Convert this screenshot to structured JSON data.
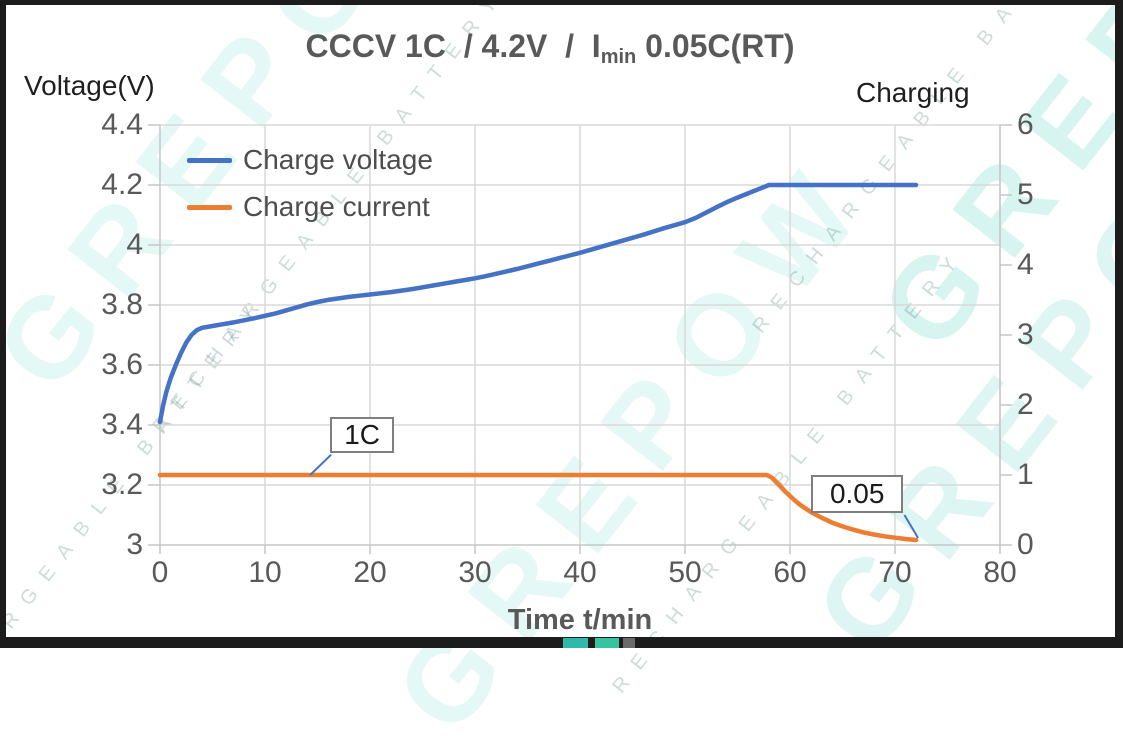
{
  "watermark": {
    "brand": "GREPOW",
    "tagline": "RECHARGEABLE BATTERY"
  },
  "frame": {
    "border_color": "#1c1c1c",
    "logo_square_colors": [
      "#2fb9a9",
      "#35c49e",
      "#6a6a6a"
    ]
  },
  "chart_data": {
    "type": "line",
    "title": "CCCV 1C / 4.2V / Imin 0.05C(RT)",
    "title_parts": {
      "pre": "CCCV 1C  / 4.2V  /  I",
      "sub": "min",
      "post": " 0.05C(RT)"
    },
    "grid": true,
    "legend_position": "upper-left",
    "colors": {
      "grid": "#d9d9d9",
      "axis": "#c6c6c6",
      "tick_text": "#595959"
    },
    "x_axis": {
      "label": "Time t/min",
      "min": 0,
      "max": 80,
      "ticks": [
        0,
        10,
        20,
        30,
        40,
        50,
        60,
        70,
        80
      ],
      "tick_labels": [
        "0",
        "10",
        "20",
        "30",
        "40",
        "50",
        "60",
        "70",
        "80"
      ]
    },
    "y_axis_left": {
      "label": "Voltage(V)",
      "min": 3,
      "max": 4.4,
      "ticks": [
        3,
        3.2,
        3.4,
        3.6,
        3.8,
        4,
        4.2,
        4.4
      ],
      "tick_labels": [
        "3",
        "3.2",
        "3.4",
        "3.6",
        "3.8",
        "4",
        "4.2",
        "4.4"
      ]
    },
    "y_axis_right": {
      "label": "Charging",
      "min": 0,
      "max": 6,
      "ticks": [
        0,
        1,
        2,
        3,
        4,
        5,
        6
      ],
      "tick_labels": [
        "0",
        "1",
        "2",
        "3",
        "4",
        "5",
        "6"
      ]
    },
    "series": [
      {
        "name": "Charge voltage",
        "color": "#4472c4",
        "axis": "left",
        "width": 4.5,
        "points": [
          [
            0,
            3.41
          ],
          [
            0.3,
            3.465
          ],
          [
            0.6,
            3.51
          ],
          [
            1,
            3.555
          ],
          [
            1.5,
            3.6
          ],
          [
            2,
            3.64
          ],
          [
            2.5,
            3.675
          ],
          [
            3,
            3.7
          ],
          [
            3.5,
            3.716
          ],
          [
            4,
            3.724
          ],
          [
            5,
            3.73
          ],
          [
            6,
            3.736
          ],
          [
            7,
            3.742
          ],
          [
            8,
            3.749
          ],
          [
            9,
            3.756
          ],
          [
            10,
            3.764
          ],
          [
            11,
            3.772
          ],
          [
            12,
            3.782
          ],
          [
            13,
            3.792
          ],
          [
            14,
            3.802
          ],
          [
            15,
            3.81
          ],
          [
            16,
            3.817
          ],
          [
            17,
            3.822
          ],
          [
            18,
            3.827
          ],
          [
            19,
            3.831
          ],
          [
            20,
            3.835
          ],
          [
            21,
            3.839
          ],
          [
            22,
            3.843
          ],
          [
            23,
            3.848
          ],
          [
            24,
            3.853
          ],
          [
            25,
            3.859
          ],
          [
            26,
            3.865
          ],
          [
            27,
            3.871
          ],
          [
            28,
            3.877
          ],
          [
            29,
            3.883
          ],
          [
            30,
            3.889
          ],
          [
            31,
            3.896
          ],
          [
            32,
            3.904
          ],
          [
            33,
            3.912
          ],
          [
            34,
            3.92
          ],
          [
            35,
            3.929
          ],
          [
            36,
            3.938
          ],
          [
            37,
            3.947
          ],
          [
            38,
            3.956
          ],
          [
            39,
            3.965
          ],
          [
            40,
            3.974
          ],
          [
            41,
            3.984
          ],
          [
            42,
            3.994
          ],
          [
            43,
            4.004
          ],
          [
            44,
            4.014
          ],
          [
            45,
            4.024
          ],
          [
            46,
            4.034
          ],
          [
            47,
            4.045
          ],
          [
            48,
            4.056
          ],
          [
            49,
            4.066
          ],
          [
            50,
            4.076
          ],
          [
            51,
            4.09
          ],
          [
            52,
            4.108
          ],
          [
            53,
            4.126
          ],
          [
            54,
            4.143
          ],
          [
            55,
            4.158
          ],
          [
            56,
            4.172
          ],
          [
            57,
            4.186
          ],
          [
            58,
            4.2
          ],
          [
            60,
            4.2
          ],
          [
            72,
            4.2
          ]
        ]
      },
      {
        "name": "Charge current",
        "color": "#ed7d31",
        "axis": "right",
        "width": 4.5,
        "points": [
          [
            0,
            1
          ],
          [
            57.8,
            1
          ],
          [
            58.3,
            0.96
          ],
          [
            59,
            0.85
          ],
          [
            59.5,
            0.77
          ],
          [
            60,
            0.7
          ],
          [
            60.5,
            0.63
          ],
          [
            61,
            0.57
          ],
          [
            62,
            0.47
          ],
          [
            63,
            0.39
          ],
          [
            64,
            0.32
          ],
          [
            65,
            0.265
          ],
          [
            66,
            0.22
          ],
          [
            67,
            0.18
          ],
          [
            68,
            0.15
          ],
          [
            69,
            0.125
          ],
          [
            70,
            0.104
          ],
          [
            71,
            0.086
          ],
          [
            72,
            0.072
          ]
        ]
      }
    ],
    "annotations": [
      {
        "label": "1C",
        "axis": "right",
        "box_t": [
          16.2,
          22.3
        ],
        "box_v": [
          1.31,
          1.83
        ],
        "leader_from": [
          16.3,
          1.29
        ],
        "leader_to": [
          14.3,
          1.0
        ]
      },
      {
        "label": "0.05",
        "axis": "right",
        "box_t": [
          62.0,
          70.8
        ],
        "box_v": [
          0.457,
          1.0
        ],
        "leader_from": [
          70.9,
          0.429
        ],
        "leader_to": [
          72.2,
          0.1
        ]
      }
    ]
  }
}
